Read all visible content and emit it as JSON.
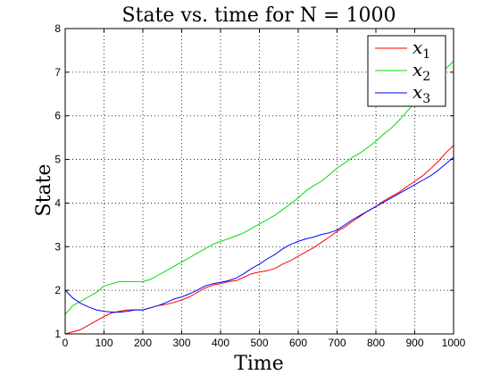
{
  "chart_data": {
    "type": "line",
    "title": "State vs. time for N = 1000",
    "xlabel": "Time",
    "ylabel": "State",
    "xlim": [
      0,
      1000
    ],
    "ylim": [
      1,
      8
    ],
    "x_ticks": [
      0,
      100,
      200,
      300,
      400,
      500,
      600,
      700,
      800,
      900,
      1000
    ],
    "y_ticks": [
      1,
      2,
      3,
      4,
      5,
      6,
      7,
      8
    ],
    "grid": true,
    "legend_position": "top-right",
    "series": [
      {
        "name": "x",
        "subscript": "1",
        "color": "#ff0000",
        "x": [
          0,
          20,
          40,
          60,
          80,
          100,
          120,
          140,
          160,
          180,
          200,
          220,
          240,
          260,
          280,
          300,
          320,
          340,
          360,
          380,
          400,
          420,
          440,
          460,
          480,
          500,
          520,
          540,
          560,
          580,
          600,
          620,
          640,
          660,
          680,
          700,
          720,
          740,
          760,
          780,
          800,
          820,
          840,
          860,
          880,
          900,
          920,
          940,
          960,
          980,
          1000
        ],
        "y": [
          1.0,
          1.05,
          1.1,
          1.2,
          1.3,
          1.4,
          1.48,
          1.52,
          1.55,
          1.55,
          1.55,
          1.6,
          1.65,
          1.68,
          1.72,
          1.78,
          1.85,
          1.95,
          2.05,
          2.12,
          2.15,
          2.2,
          2.22,
          2.3,
          2.38,
          2.42,
          2.45,
          2.5,
          2.6,
          2.68,
          2.78,
          2.88,
          2.98,
          3.1,
          3.22,
          3.35,
          3.45,
          3.58,
          3.7,
          3.82,
          3.92,
          4.05,
          4.15,
          4.25,
          4.38,
          4.5,
          4.62,
          4.78,
          4.95,
          5.15,
          5.32
        ]
      },
      {
        "name": "x",
        "subscript": "2",
        "color": "#00dd00",
        "x": [
          0,
          20,
          40,
          60,
          80,
          100,
          120,
          140,
          160,
          180,
          200,
          220,
          240,
          260,
          280,
          300,
          320,
          340,
          360,
          380,
          400,
          420,
          440,
          460,
          480,
          500,
          520,
          540,
          560,
          580,
          600,
          620,
          640,
          660,
          680,
          700,
          720,
          740,
          760,
          780,
          800,
          820,
          840,
          860,
          880,
          900,
          920,
          940,
          960,
          980,
          1000
        ],
        "y": [
          1.45,
          1.65,
          1.75,
          1.85,
          1.95,
          2.1,
          2.15,
          2.2,
          2.2,
          2.2,
          2.2,
          2.25,
          2.35,
          2.45,
          2.55,
          2.65,
          2.75,
          2.85,
          2.95,
          3.05,
          3.12,
          3.18,
          3.25,
          3.32,
          3.42,
          3.52,
          3.62,
          3.72,
          3.85,
          3.98,
          4.12,
          4.28,
          4.4,
          4.5,
          4.65,
          4.8,
          4.92,
          5.05,
          5.15,
          5.28,
          5.42,
          5.58,
          5.72,
          5.9,
          6.1,
          6.3,
          6.5,
          6.7,
          6.9,
          7.08,
          7.25
        ]
      },
      {
        "name": "x",
        "subscript": "3",
        "color": "#0000ff",
        "x": [
          0,
          20,
          40,
          60,
          80,
          100,
          120,
          140,
          160,
          180,
          200,
          220,
          240,
          260,
          280,
          300,
          320,
          340,
          360,
          380,
          400,
          420,
          440,
          460,
          480,
          500,
          520,
          540,
          560,
          580,
          600,
          620,
          640,
          660,
          680,
          700,
          720,
          740,
          760,
          780,
          800,
          820,
          840,
          860,
          880,
          900,
          920,
          940,
          960,
          980,
          1000
        ],
        "y": [
          2.0,
          1.82,
          1.7,
          1.62,
          1.55,
          1.52,
          1.5,
          1.5,
          1.52,
          1.55,
          1.55,
          1.6,
          1.65,
          1.72,
          1.8,
          1.85,
          1.92,
          2.0,
          2.1,
          2.15,
          2.18,
          2.22,
          2.28,
          2.38,
          2.5,
          2.6,
          2.72,
          2.82,
          2.95,
          3.05,
          3.12,
          3.18,
          3.22,
          3.28,
          3.32,
          3.38,
          3.5,
          3.62,
          3.72,
          3.82,
          3.92,
          4.02,
          4.12,
          4.22,
          4.32,
          4.42,
          4.52,
          4.62,
          4.75,
          4.9,
          5.05
        ]
      }
    ]
  }
}
